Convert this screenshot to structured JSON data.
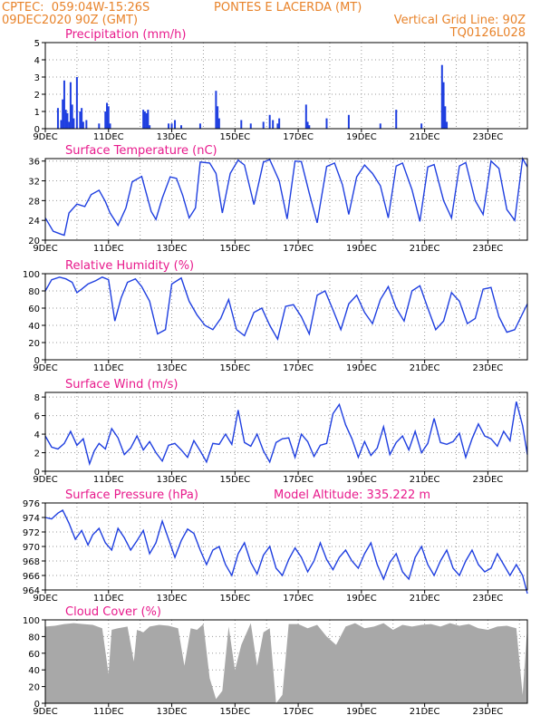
{
  "header": {
    "left_line1": "CPTEC:  059:04W-15:26S",
    "station": "PONTES E LACERDA (MT)",
    "left_line2": "09DEC2020 90Z (GMT)",
    "vgrid": "Vertical Grid Line: 90Z",
    "code": "TQ0126L028",
    "model_altitude": "Model Altitude: 335.222  m"
  },
  "colors": {
    "header": "#e8832a",
    "title": "#e81a8c",
    "line": "#1f3fe0",
    "cloud": "#a8a8a8",
    "grid": "#999999"
  },
  "chart_data": [
    {
      "type": "bar",
      "title": "Precipitation  (mm/h)",
      "ylim": [
        0,
        5
      ],
      "yticks": [
        "0",
        "1",
        "2",
        "3",
        "4",
        "5"
      ],
      "xticks": [
        "9DEC",
        "11DEC",
        "13DEC",
        "15DEC",
        "17DEC",
        "19DEC",
        "21DEC",
        "23DEC"
      ],
      "xlim": [
        0,
        15.25
      ],
      "x": [
        0.4,
        0.5,
        0.55,
        0.6,
        0.65,
        0.7,
        0.75,
        0.8,
        0.85,
        0.9,
        1.0,
        1.1,
        1.15,
        1.2,
        1.3,
        1.7,
        1.9,
        1.95,
        2.0,
        2.05,
        3.1,
        3.15,
        3.2,
        3.25,
        3.3,
        3.9,
        4.0,
        4.1,
        4.3,
        4.9,
        5.4,
        5.45,
        5.5,
        6.2,
        6.5,
        6.9,
        7.1,
        7.2,
        7.35,
        7.4,
        8.25,
        8.3,
        8.35,
        8.9,
        9.6,
        10.6,
        11.1,
        11.9,
        12.55,
        12.6,
        12.65,
        12.7
      ],
      "values": [
        1.2,
        0.5,
        1.7,
        2.8,
        1.1,
        0.9,
        0.4,
        2.7,
        1.4,
        0.6,
        3.0,
        1.0,
        1.2,
        0.4,
        0.5,
        0.3,
        1.0,
        1.5,
        1.3,
        0.3,
        1.1,
        1.0,
        0.9,
        1.1,
        0.2,
        0.3,
        0.3,
        0.5,
        0.2,
        0.3,
        2.2,
        1.3,
        0.6,
        0.5,
        0.3,
        0.4,
        0.8,
        0.5,
        0.3,
        0.6,
        1.4,
        0.4,
        0.2,
        0.6,
        0.8,
        0.3,
        1.1,
        0.3,
        3.7,
        2.7,
        1.3,
        0.4
      ]
    },
    {
      "type": "line",
      "title": "Surface Temperature (nC)",
      "ylim": [
        20,
        36.5
      ],
      "yticks": [
        "20",
        "24",
        "28",
        "32",
        "36"
      ],
      "xticks": [
        "9DEC",
        "11DEC",
        "13DEC",
        "15DEC",
        "17DEC",
        "19DEC",
        "21DEC",
        "23DEC"
      ],
      "xlim": [
        0,
        15.25
      ],
      "x": [
        0,
        0.25,
        0.5,
        0.6,
        0.75,
        1.0,
        1.25,
        1.45,
        1.7,
        1.9,
        2.05,
        2.3,
        2.55,
        2.75,
        3.05,
        3.35,
        3.5,
        3.7,
        3.95,
        4.15,
        4.35,
        4.55,
        4.75,
        4.9,
        5.2,
        5.4,
        5.6,
        5.85,
        6.1,
        6.3,
        6.6,
        6.9,
        7.1,
        7.4,
        7.65,
        7.9,
        8.1,
        8.35,
        8.6,
        8.9,
        9.15,
        9.4,
        9.6,
        9.85,
        10.1,
        10.35,
        10.6,
        10.85,
        11.1,
        11.3,
        11.6,
        11.85,
        12.1,
        12.3,
        12.6,
        12.85,
        13.1,
        13.3,
        13.6,
        13.85,
        14.1,
        14.35,
        14.6,
        14.85,
        15.1,
        15.25
      ],
      "values": [
        24.5,
        21.8,
        21.2,
        21.0,
        25.5,
        27.3,
        26.8,
        29.2,
        30.1,
        27.8,
        25.5,
        23.0,
        26.5,
        31.8,
        32.9,
        25.8,
        24.2,
        28.5,
        32.8,
        32.5,
        29.0,
        24.5,
        26.5,
        35.8,
        35.6,
        33.5,
        25.5,
        33.5,
        36.2,
        35.2,
        27.2,
        35.8,
        36.3,
        32.0,
        24.3,
        36.0,
        35.9,
        29.5,
        23.5,
        34.9,
        35.6,
        31.2,
        25.2,
        32.8,
        35.2,
        33.5,
        31.0,
        24.5,
        35.0,
        35.6,
        30.2,
        23.8,
        34.8,
        35.3,
        28.0,
        24.5,
        35.0,
        35.7,
        28.0,
        25.2,
        36.0,
        34.5,
        26.2,
        24.0,
        36.5,
        34.8
      ]
    },
    {
      "type": "line",
      "title": "Relative Humidity (%)",
      "ylim": [
        0,
        100
      ],
      "yticks": [
        "0",
        "20",
        "40",
        "60",
        "80",
        "100"
      ],
      "xticks": [
        "9DEC",
        "11DEC",
        "13DEC",
        "15DEC",
        "17DEC",
        "19DEC",
        "21DEC",
        "23DEC"
      ],
      "xlim": [
        0,
        15.25
      ],
      "x": [
        0,
        0.2,
        0.45,
        0.65,
        0.85,
        1.0,
        1.15,
        1.35,
        1.6,
        1.8,
        2.0,
        2.2,
        2.4,
        2.6,
        2.85,
        3.05,
        3.3,
        3.55,
        3.8,
        4.0,
        4.3,
        4.55,
        4.8,
        5.05,
        5.3,
        5.55,
        5.8,
        6.05,
        6.3,
        6.6,
        6.85,
        7.1,
        7.35,
        7.6,
        7.85,
        8.1,
        8.35,
        8.6,
        8.85,
        9.1,
        9.35,
        9.6,
        9.85,
        10.1,
        10.35,
        10.6,
        10.85,
        11.1,
        11.35,
        11.6,
        11.85,
        12.1,
        12.35,
        12.6,
        12.85,
        13.1,
        13.35,
        13.6,
        13.85,
        14.1,
        14.35,
        14.6,
        14.85,
        15.05,
        15.25
      ],
      "values": [
        80,
        93,
        96,
        94,
        90,
        78,
        82,
        88,
        92,
        96,
        93,
        45,
        72,
        90,
        94,
        85,
        68,
        30,
        35,
        88,
        95,
        68,
        52,
        40,
        35,
        48,
        70,
        35,
        28,
        55,
        60,
        40,
        24,
        62,
        64,
        50,
        30,
        75,
        80,
        58,
        35,
        65,
        75,
        55,
        42,
        70,
        85,
        60,
        45,
        80,
        86,
        60,
        35,
        45,
        78,
        68,
        42,
        48,
        82,
        84,
        50,
        32,
        35,
        50,
        65
      ]
    },
    {
      "type": "line",
      "title": "Surface Wind (m/s)",
      "ylim": [
        0,
        8.5
      ],
      "yticks": [
        "0",
        "2",
        "4",
        "6",
        "8"
      ],
      "xticks": [
        "9DEC",
        "11DEC",
        "13DEC",
        "15DEC",
        "17DEC",
        "19DEC",
        "21DEC",
        "23DEC"
      ],
      "xlim": [
        0,
        15.25
      ],
      "x": [
        0,
        0.2,
        0.4,
        0.6,
        0.8,
        1.0,
        1.2,
        1.4,
        1.55,
        1.7,
        1.9,
        2.1,
        2.3,
        2.5,
        2.7,
        2.9,
        3.1,
        3.3,
        3.5,
        3.7,
        3.9,
        4.1,
        4.3,
        4.5,
        4.7,
        4.9,
        5.1,
        5.3,
        5.5,
        5.7,
        5.9,
        6.1,
        6.3,
        6.5,
        6.7,
        6.9,
        7.1,
        7.3,
        7.5,
        7.7,
        7.9,
        8.1,
        8.3,
        8.5,
        8.7,
        8.9,
        9.1,
        9.3,
        9.5,
        9.7,
        9.9,
        10.1,
        10.3,
        10.5,
        10.7,
        10.9,
        11.1,
        11.3,
        11.5,
        11.7,
        11.9,
        12.1,
        12.3,
        12.5,
        12.7,
        12.9,
        13.1,
        13.3,
        13.5,
        13.7,
        13.9,
        14.1,
        14.3,
        14.5,
        14.7,
        14.9,
        15.1,
        15.25
      ],
      "values": [
        3.8,
        2.6,
        2.4,
        3.0,
        4.3,
        2.8,
        3.5,
        0.8,
        2.2,
        3.0,
        2.4,
        4.6,
        3.6,
        1.8,
        2.5,
        3.8,
        2.3,
        3.2,
        2.0,
        1.1,
        2.8,
        3.0,
        2.3,
        1.5,
        3.3,
        2.2,
        1.0,
        3.0,
        2.9,
        4.0,
        2.9,
        6.6,
        3.1,
        2.7,
        4.0,
        2.2,
        1.0,
        3.1,
        3.5,
        3.6,
        1.5,
        4.0,
        3.2,
        1.6,
        2.8,
        3.0,
        6.2,
        7.2,
        5.0,
        3.5,
        1.5,
        3.2,
        1.7,
        2.5,
        4.8,
        1.8,
        3.1,
        3.8,
        2.3,
        4.3,
        2.0,
        3.0,
        5.7,
        3.1,
        2.9,
        3.2,
        4.1,
        1.5,
        3.5,
        5.1,
        3.8,
        3.5,
        2.7,
        4.3,
        3.3,
        7.5,
        4.9,
        1.8
      ]
    },
    {
      "type": "line",
      "title": "Surface Pressure (hPa)",
      "ylim": [
        964,
        976
      ],
      "yticks": [
        "964",
        "966",
        "968",
        "970",
        "972",
        "974",
        "976"
      ],
      "xticks": [
        "9DEC",
        "11DEC",
        "13DEC",
        "15DEC",
        "17DEC",
        "19DEC",
        "21DEC",
        "23DEC"
      ],
      "xlim": [
        0,
        15.25
      ],
      "x": [
        0,
        0.2,
        0.4,
        0.55,
        0.75,
        0.95,
        1.15,
        1.35,
        1.5,
        1.7,
        1.9,
        2.1,
        2.3,
        2.5,
        2.7,
        2.9,
        3.1,
        3.3,
        3.5,
        3.7,
        3.9,
        4.1,
        4.3,
        4.5,
        4.7,
        4.9,
        5.1,
        5.3,
        5.5,
        5.7,
        5.9,
        6.1,
        6.3,
        6.5,
        6.7,
        6.9,
        7.1,
        7.3,
        7.5,
        7.7,
        7.9,
        8.1,
        8.3,
        8.5,
        8.7,
        8.9,
        9.1,
        9.3,
        9.5,
        9.7,
        9.9,
        10.1,
        10.3,
        10.5,
        10.7,
        10.9,
        11.1,
        11.3,
        11.5,
        11.7,
        11.9,
        12.1,
        12.3,
        12.5,
        12.7,
        12.9,
        13.1,
        13.3,
        13.5,
        13.7,
        13.9,
        14.1,
        14.3,
        14.5,
        14.7,
        14.9,
        15.1,
        15.25
      ],
      "values": [
        974.0,
        973.8,
        974.6,
        975.0,
        973.2,
        971.0,
        972.2,
        970.2,
        971.6,
        972.5,
        970.5,
        969.5,
        972.5,
        971.2,
        969.5,
        970.8,
        972.2,
        969.0,
        970.5,
        973.5,
        971.0,
        968.5,
        970.8,
        972.4,
        971.8,
        969.5,
        967.5,
        969.5,
        970.0,
        967.5,
        966.0,
        969.0,
        970.5,
        967.8,
        966.2,
        968.8,
        970.0,
        967.0,
        966.0,
        968.2,
        969.8,
        968.5,
        966.5,
        968.0,
        970.5,
        968.2,
        966.8,
        968.5,
        969.5,
        968.0,
        967.0,
        969.0,
        970.5,
        967.5,
        965.5,
        967.8,
        969.0,
        966.5,
        965.5,
        968.5,
        970.0,
        967.5,
        966.0,
        968.0,
        969.5,
        967.0,
        966.0,
        968.0,
        969.5,
        967.5,
        966.5,
        967.0,
        969.0,
        967.5,
        966.0,
        967.5,
        966.0,
        963.5
      ]
    },
    {
      "type": "area",
      "title": "Cloud Cover (%)",
      "ylim": [
        0,
        100
      ],
      "yticks": [
        "0",
        "20",
        "40",
        "60",
        "80",
        "100"
      ],
      "xticks": [
        "9DEC",
        "11DEC",
        "13DEC",
        "15DEC",
        "17DEC",
        "19DEC",
        "21DEC",
        "23DEC"
      ],
      "xlim": [
        0,
        15.25
      ],
      "x": [
        0,
        0.3,
        0.6,
        0.9,
        1.2,
        1.5,
        1.8,
        2.0,
        2.1,
        2.3,
        2.6,
        2.8,
        2.9,
        3.1,
        3.3,
        3.6,
        3.9,
        4.2,
        4.4,
        4.6,
        4.8,
        5.0,
        5.2,
        5.4,
        5.6,
        5.8,
        6.0,
        6.2,
        6.5,
        6.7,
        6.9,
        7.1,
        7.3,
        7.5,
        7.7,
        8.0,
        8.3,
        8.6,
        8.9,
        9.2,
        9.5,
        9.8,
        10.1,
        10.4,
        10.7,
        11.0,
        11.3,
        11.6,
        11.9,
        12.2,
        12.5,
        12.8,
        13.1,
        13.4,
        13.7,
        14.0,
        14.3,
        14.6,
        14.9,
        15.1,
        15.25
      ],
      "values": [
        92,
        93,
        95,
        96,
        95,
        94,
        90,
        35,
        88,
        90,
        92,
        50,
        88,
        85,
        92,
        94,
        93,
        90,
        45,
        90,
        88,
        95,
        30,
        5,
        15,
        92,
        40,
        70,
        96,
        45,
        85,
        90,
        0,
        10,
        95,
        95,
        90,
        94,
        80,
        70,
        92,
        96,
        90,
        92,
        96,
        88,
        94,
        92,
        94,
        95,
        92,
        96,
        93,
        95,
        90,
        88,
        92,
        93,
        90,
        10,
        92
      ]
    }
  ]
}
